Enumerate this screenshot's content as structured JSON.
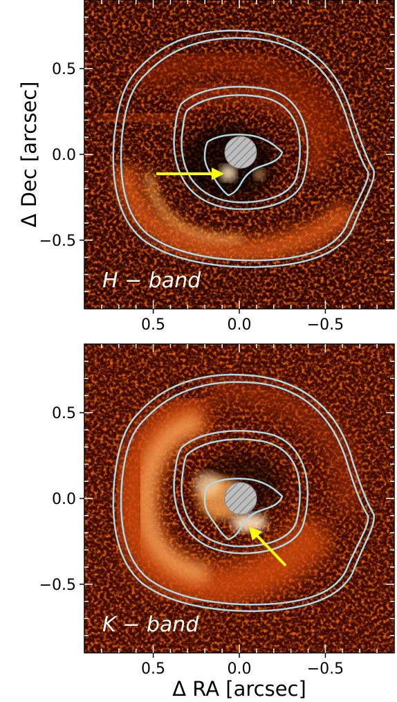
{
  "chart_data": [
    {
      "type": "heatmap",
      "panel": "top",
      "label": "H − band",
      "xlabel": "",
      "ylabel": "Δ Dec [arcsec]",
      "xlim": [
        0.9,
        -0.9
      ],
      "ylim": [
        -0.9,
        0.9
      ],
      "x_ticks": [
        0.5,
        0.0,
        -0.5
      ],
      "x_tick_labels": [
        "0.5",
        "0.0",
        "−0.5"
      ],
      "y_ticks": [
        0.5,
        0.0,
        -0.5
      ],
      "y_tick_labels": [
        "0.5",
        "0.0",
        "−0.5"
      ],
      "colormap": "gist_heat",
      "contour_color": "#add8e6",
      "mask_center": [
        0.0,
        0.0
      ],
      "mask_radius": 0.09,
      "arrow": {
        "from": [
          0.48,
          -0.11
        ],
        "to": [
          0.08,
          -0.11
        ],
        "color": "#ffff00"
      }
    },
    {
      "type": "heatmap",
      "panel": "bottom",
      "label": "K − band",
      "xlabel": "Δ RA [arcsec]",
      "ylabel": "",
      "xlim": [
        0.9,
        -0.9
      ],
      "ylim": [
        -0.9,
        0.9
      ],
      "x_ticks": [
        0.5,
        0.0,
        -0.5
      ],
      "x_tick_labels": [
        "0.5",
        "0.0",
        "−0.5"
      ],
      "y_ticks": [
        0.5,
        0.0,
        -0.5
      ],
      "y_tick_labels": [
        "0.5",
        "0.0",
        "−0.5"
      ],
      "colormap": "gist_heat",
      "contour_color": "#add8e6",
      "mask_center": [
        0.0,
        0.0
      ],
      "mask_radius": 0.09,
      "arrow": {
        "from": [
          -0.28,
          -0.39
        ],
        "to": [
          -0.07,
          -0.17
        ],
        "color": "#ffff00"
      }
    }
  ]
}
